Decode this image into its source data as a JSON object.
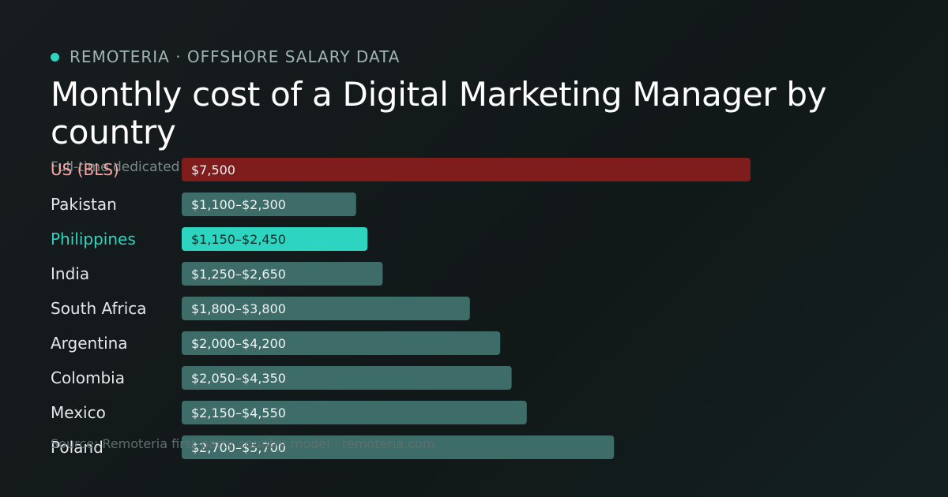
{
  "brand": {
    "name": "REMOTERIA · OFFSHORE SALARY DATA"
  },
  "title": "Monthly cost of a Digital Marketing Manager by country",
  "subtitle": "Full-time dedicated",
  "source": "Source: Remoteria first-party country model · remoteria.com",
  "colors": {
    "background": "#151b1c",
    "accent": "#2dd4bf",
    "baseline_bar": "#7f1d1d",
    "default_bar": "#3e6d69",
    "label_default": "#e5e7eb",
    "label_highlight": "#2dd4bf",
    "label_baseline": "#fca5a5"
  },
  "chart_data": {
    "type": "bar",
    "orientation": "horizontal",
    "unit": "USD per month",
    "categories": [
      "US (BLS)",
      "Pakistan",
      "Philippines",
      "India",
      "South Africa",
      "Argentina",
      "Colombia",
      "Mexico",
      "Poland"
    ],
    "series": [
      {
        "low": [
          7500,
          1100,
          1150,
          1250,
          1800,
          2000,
          2050,
          2150,
          2700
        ],
        "high": [
          7500,
          2300,
          2450,
          2650,
          3800,
          4200,
          4350,
          4550,
          5700
        ],
        "data_labels": [
          "$7,500",
          "$1,100–$2,300",
          "$1,150–$2,450",
          "$1,250–$2,650",
          "$1,800–$3,800",
          "$2,000–$4,200",
          "$2,050–$4,350",
          "$2,150–$4,550",
          "$2,700–$5,700"
        ]
      }
    ],
    "baseline_category": "US (BLS)",
    "highlight_category": "Philippines",
    "xlim": [
      0,
      7500
    ],
    "grid": false,
    "legend": "none"
  }
}
